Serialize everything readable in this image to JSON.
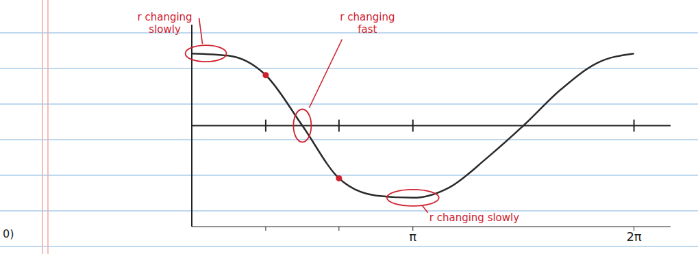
{
  "chart_data": {
    "type": "line",
    "xlim": [
      0,
      6.8
    ],
    "xticks": [
      {
        "value": 1.05,
        "label": null
      },
      {
        "value": 2.09,
        "label": null
      },
      {
        "value": 3.14,
        "label": "π"
      },
      {
        "value": 6.28,
        "label": "2π"
      }
    ],
    "ylim": [
      -1.4,
      1.4
    ],
    "yticks": [],
    "tick_labels": "x",
    "grid": false,
    "series": [
      {
        "type": "line",
        "color": "#2b2b2b",
        "x": [
          0,
          0.52,
          1.05,
          1.57,
          2.09,
          2.62,
          3.14,
          3.67,
          4.19,
          4.71,
          5.24,
          5.76,
          6.28
        ],
        "values": [
          1,
          0.97,
          0.7,
          0,
          -0.73,
          -0.97,
          -1,
          -0.85,
          -0.45,
          0,
          0.5,
          0.87,
          1
        ]
      },
      {
        "type": "scatter",
        "color": "#d0202e",
        "marker": "circle",
        "x": [
          1.05,
          2.09
        ],
        "values": [
          0.7,
          -0.73
        ]
      }
    ],
    "annotations": [
      {
        "text": "r changing slowly",
        "x": 0.2,
        "y": 1
      },
      {
        "text": "r changing fast",
        "x": 1.57,
        "y": 0
      },
      {
        "text": "r changing slowly",
        "x": 3.14,
        "y": -1
      },
      {
        "text": "0)"
      }
    ]
  }
}
